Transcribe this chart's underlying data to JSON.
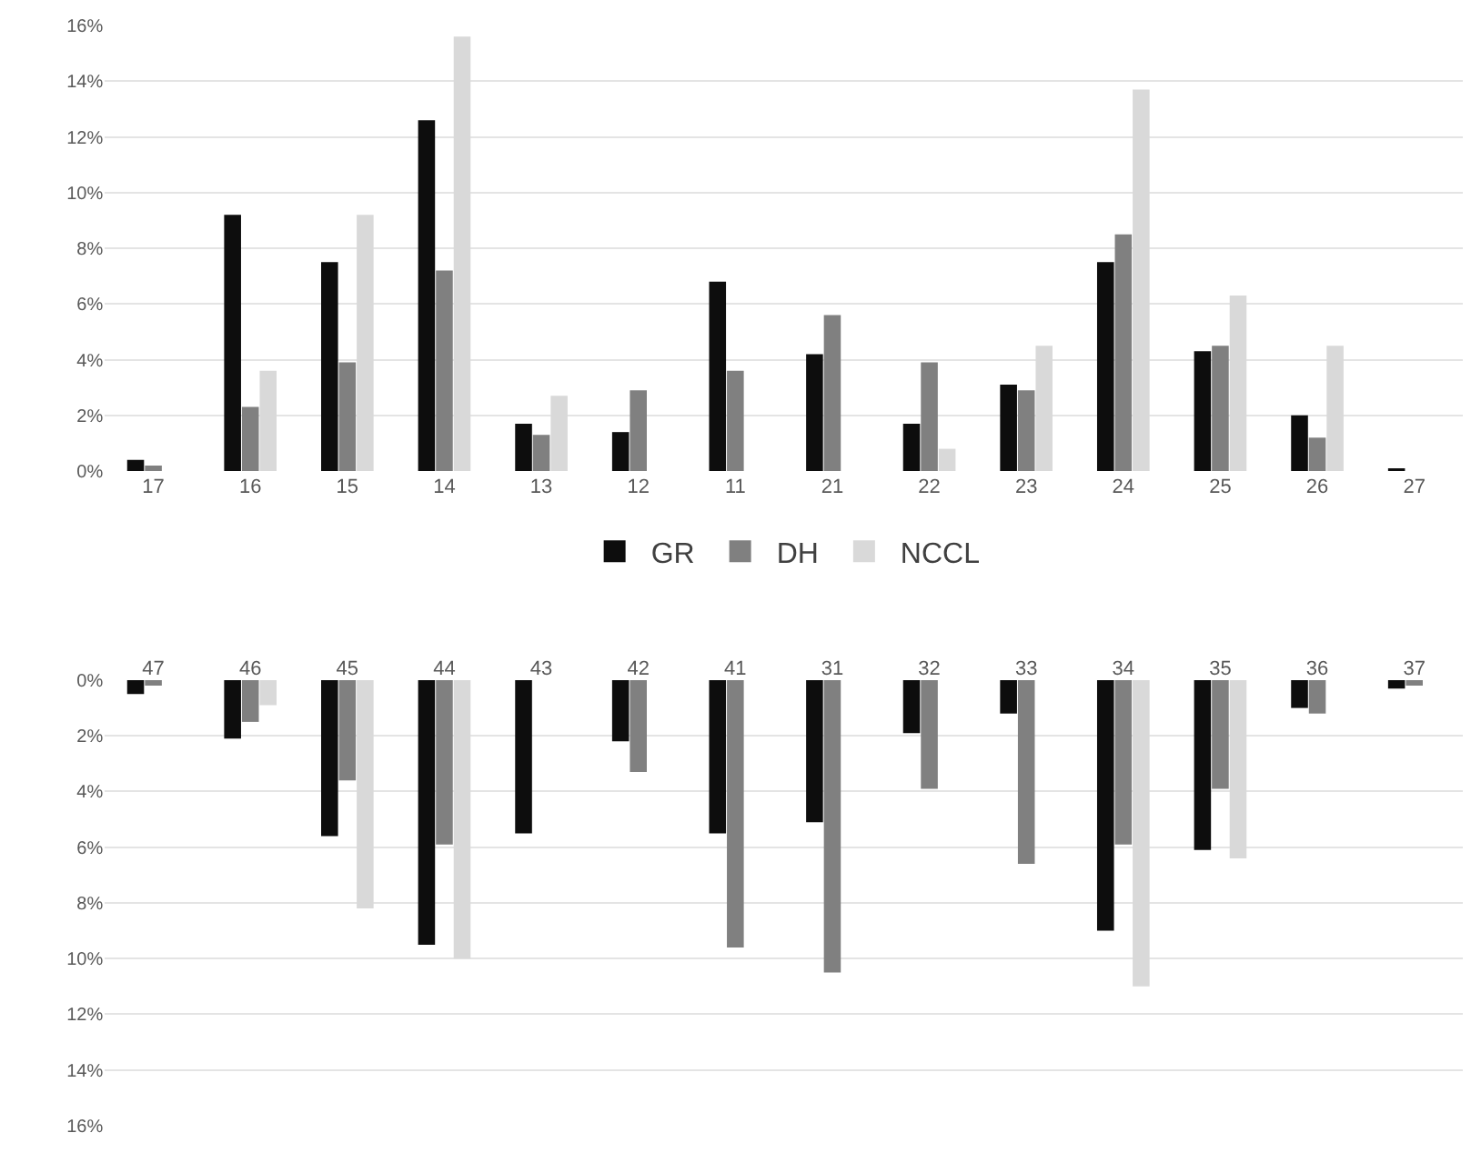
{
  "chart_data": [
    {
      "type": "bar",
      "categories": [
        "17",
        "16",
        "15",
        "14",
        "13",
        "12",
        "11",
        "21",
        "22",
        "23",
        "24",
        "25",
        "26",
        "27"
      ],
      "series": [
        {
          "name": "GR",
          "color": "#0d0d0d",
          "values": [
            0.4,
            9.2,
            7.5,
            12.6,
            1.7,
            1.4,
            6.8,
            4.2,
            1.7,
            3.1,
            7.5,
            4.3,
            2.0,
            0.1
          ]
        },
        {
          "name": "DH",
          "color": "#808080",
          "values": [
            0.2,
            2.3,
            3.9,
            7.2,
            1.3,
            2.9,
            3.6,
            5.6,
            3.9,
            2.9,
            8.5,
            4.5,
            1.2,
            0
          ]
        },
        {
          "name": "NCCL",
          "color": "#d9d9d9",
          "values": [
            0,
            3.6,
            9.2,
            15.6,
            2.7,
            0,
            0,
            0,
            0.8,
            4.5,
            13.7,
            6.3,
            4.5,
            0
          ]
        }
      ],
      "ylim": [
        0,
        16
      ],
      "yticks": [
        {
          "value": 0,
          "label": "0%"
        },
        {
          "value": 2,
          "label": "2%"
        },
        {
          "value": 4,
          "label": "4%"
        },
        {
          "value": 6,
          "label": "6%"
        },
        {
          "value": 8,
          "label": "8%"
        },
        {
          "value": 10,
          "label": "10%"
        },
        {
          "value": 12,
          "label": "12%"
        },
        {
          "value": 14,
          "label": "14%"
        },
        {
          "value": 16,
          "label": "16%"
        }
      ],
      "grid": "y",
      "legend": "bottom"
    },
    {
      "type": "bar",
      "categories": [
        "47",
        "46",
        "45",
        "44",
        "43",
        "42",
        "41",
        "31",
        "32",
        "33",
        "34",
        "35",
        "36",
        "37"
      ],
      "series": [
        {
          "color": "#0d0d0d",
          "values": [
            0.5,
            2.1,
            5.6,
            9.5,
            5.5,
            2.2,
            5.5,
            5.1,
            1.9,
            1.2,
            9.0,
            6.1,
            1.0,
            0.3
          ]
        },
        {
          "color": "#808080",
          "values": [
            0.2,
            1.5,
            3.6,
            5.9,
            0,
            3.3,
            9.6,
            10.5,
            3.9,
            6.6,
            5.9,
            3.9,
            1.2,
            0.2
          ]
        },
        {
          "color": "#d9d9d9",
          "values": [
            0,
            0.9,
            8.2,
            10.0,
            0,
            0,
            0,
            0,
            0,
            0,
            11.0,
            6.4,
            0,
            0
          ]
        }
      ],
      "ylim": [
        16,
        0
      ],
      "yticks": [
        {
          "value": 0,
          "label": "0%"
        },
        {
          "value": 2,
          "label": "2%"
        },
        {
          "value": 4,
          "label": "4%"
        },
        {
          "value": 6,
          "label": "6%"
        },
        {
          "value": 8,
          "label": "8%"
        },
        {
          "value": 10,
          "label": "10%"
        },
        {
          "value": 12,
          "label": "12%"
        },
        {
          "value": 14,
          "label": "14%"
        },
        {
          "value": 16,
          "label": "16%"
        }
      ],
      "grid": "y",
      "legend": false
    }
  ]
}
